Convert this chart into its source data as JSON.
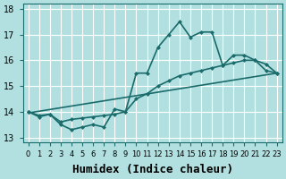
{
  "xlabel": "Humidex (Indice chaleur)",
  "ylabel": "",
  "bg_color": "#b2e0e0",
  "grid_color": "#ffffff",
  "line_color": "#1a6b6b",
  "xlim": [
    -0.5,
    23.5
  ],
  "ylim": [
    12.8,
    18.2
  ],
  "yticks": [
    13,
    14,
    15,
    16,
    17,
    18
  ],
  "xticks": [
    0,
    1,
    2,
    3,
    4,
    5,
    6,
    7,
    8,
    9,
    10,
    11,
    12,
    13,
    14,
    15,
    16,
    17,
    18,
    19,
    20,
    21,
    22,
    23
  ],
  "series1_x": [
    0,
    1,
    2,
    3,
    4,
    5,
    6,
    7,
    8,
    9,
    10,
    11,
    12,
    13,
    14,
    15,
    16,
    17,
    18,
    19,
    20,
    21,
    22,
    23
  ],
  "series1_y": [
    14.0,
    13.8,
    13.9,
    13.5,
    13.3,
    13.4,
    13.5,
    13.4,
    14.1,
    14.0,
    15.5,
    15.5,
    16.5,
    17.0,
    17.5,
    16.9,
    17.1,
    17.1,
    15.8,
    16.2,
    16.2,
    16.0,
    15.6,
    15.5
  ],
  "series2_x": [
    0,
    1,
    2,
    3,
    4,
    5,
    6,
    7,
    8,
    9,
    10,
    11,
    12,
    13,
    14,
    15,
    16,
    17,
    18,
    19,
    20,
    21,
    22,
    23
  ],
  "series2_y": [
    14.0,
    13.85,
    13.9,
    13.6,
    13.7,
    13.75,
    13.8,
    13.85,
    13.9,
    14.0,
    14.5,
    14.7,
    15.0,
    15.2,
    15.4,
    15.5,
    15.6,
    15.7,
    15.8,
    15.9,
    16.0,
    16.0,
    15.85,
    15.5
  ],
  "series3_x": [
    0,
    23
  ],
  "series3_y": [
    13.95,
    15.5
  ],
  "xlabel_fontsize": 9,
  "tick_fontsize": 7,
  "linewidth": 1.2,
  "markersize": 2.5
}
